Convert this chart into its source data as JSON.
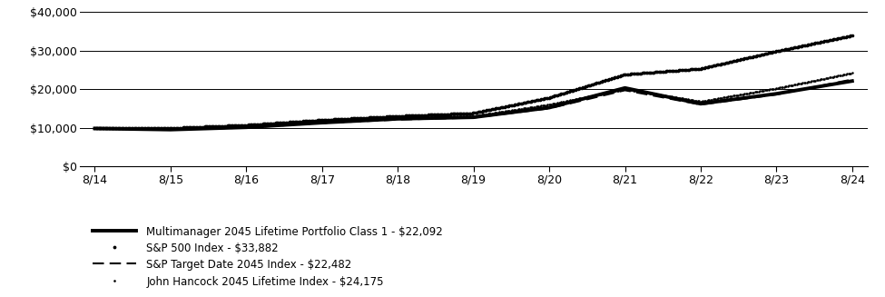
{
  "x_labels": [
    "8/14",
    "8/15",
    "8/16",
    "8/17",
    "8/18",
    "8/19",
    "8/20",
    "8/21",
    "8/22",
    "8/23",
    "8/24"
  ],
  "x_positions": [
    0,
    1,
    2,
    3,
    4,
    5,
    6,
    7,
    8,
    9,
    10
  ],
  "series": {
    "multimanager": {
      "label": "Multimanager 2045 Lifetime Portfolio Class 1 - $22,092",
      "color": "#000000",
      "linewidth": 2.8,
      "values": [
        9800,
        9500,
        10100,
        11300,
        12300,
        12700,
        15200,
        20300,
        16200,
        18800,
        22092
      ]
    },
    "sp500": {
      "label": "S&P 500 Index - $33,882",
      "color": "#000000",
      "values": [
        9900,
        9900,
        10700,
        12000,
        13000,
        13800,
        17800,
        23800,
        25300,
        29800,
        33882
      ]
    },
    "sp_target": {
      "label": "S&P Target Date 2045 Index - $22,482",
      "color": "#000000",
      "linewidth": 1.5,
      "values": [
        9800,
        9500,
        10000,
        11200,
        12100,
        12600,
        15000,
        19700,
        16000,
        18600,
        22482
      ]
    },
    "john_hancock": {
      "label": "John Hancock 2045 Lifetime Index - $24,175",
      "color": "#000000",
      "linewidth": 1.2,
      "values": [
        9900,
        9800,
        10400,
        11600,
        12600,
        13000,
        16000,
        20000,
        16800,
        20200,
        24175
      ]
    }
  },
  "ylim": [
    0,
    40000
  ],
  "yticks": [
    0,
    10000,
    20000,
    30000,
    40000
  ],
  "ytick_labels": [
    "$0",
    "$10,000",
    "$20,000",
    "$30,000",
    "$40,000"
  ],
  "background_color": "#ffffff",
  "grid_color": "#000000"
}
